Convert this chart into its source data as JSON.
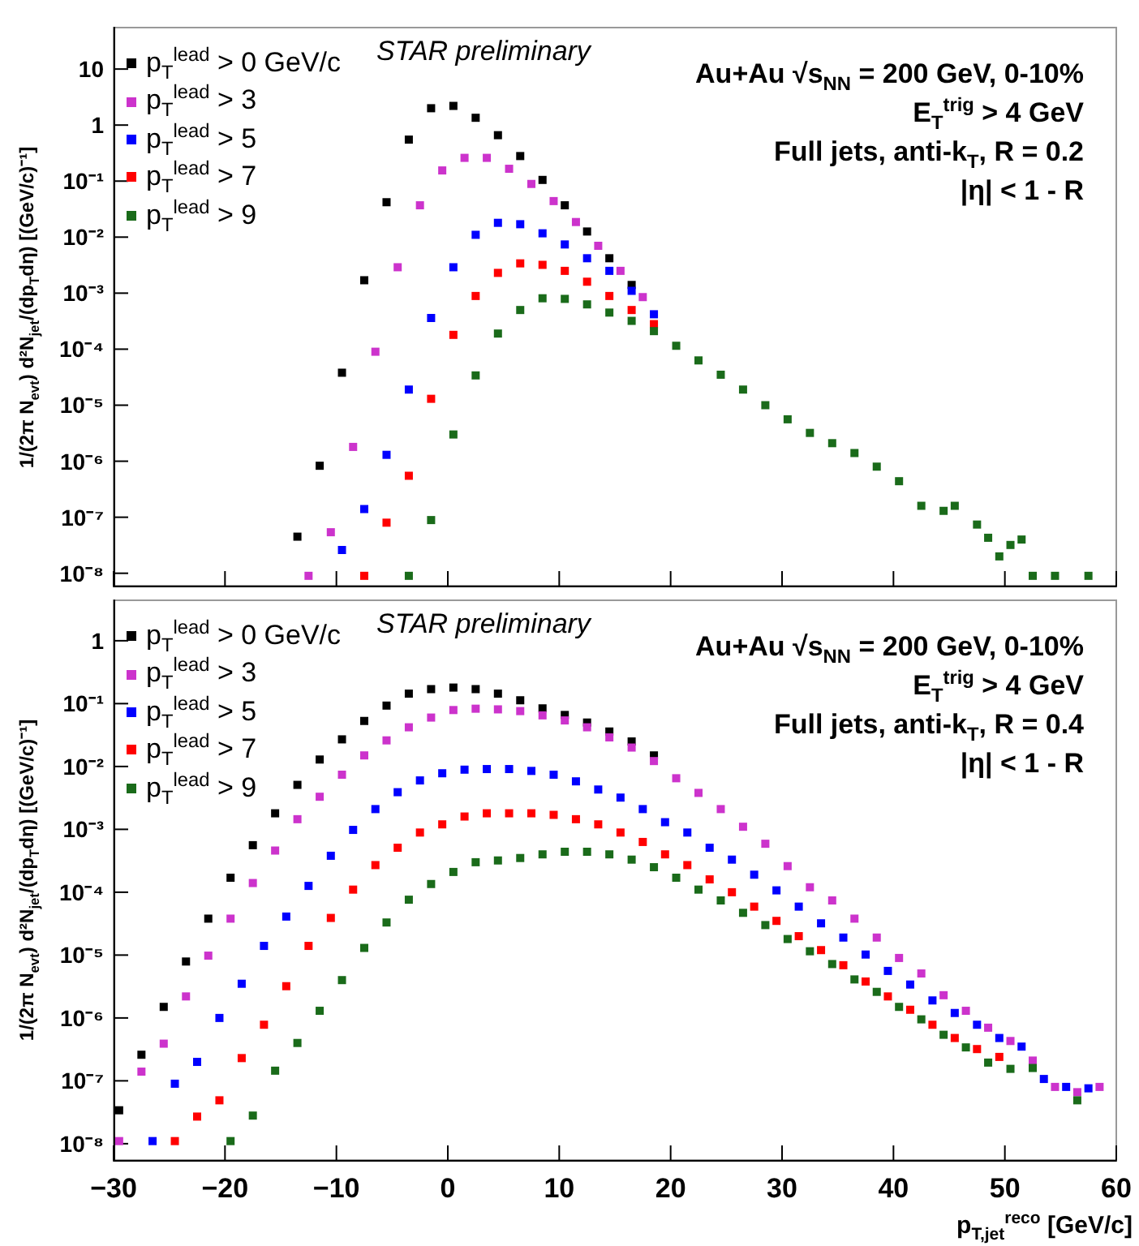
{
  "chart_data": [
    {
      "type": "scatter",
      "log": "y",
      "marker": "square",
      "legend": "top left",
      "tick_labels": "y",
      "ylabel": "1/(2π N$_{evt}$) d²N$_{jet}$/(dp$_{T}$dη)  [(GeV/c)⁻¹]",
      "annotations": [
        "STAR preliminary",
        "Au+Au  √s$_{NN}$ = 200 GeV, 0-10%",
        "E$_{T}$$^{trig}$ > 4 GeV",
        "Full jets, anti-k$_{T}$,  R = 0.2",
        "|η| < 1 - R"
      ],
      "xlim": [
        -30,
        60
      ],
      "xticks": [
        -30,
        -20,
        -10,
        0,
        10,
        20,
        30,
        40,
        50,
        60
      ],
      "ylim": [
        6e-09,
        55
      ],
      "yticks": [
        {
          "value": 1e-08,
          "label": "10⁻⁸"
        },
        {
          "value": 1e-07,
          "label": "10⁻⁷"
        },
        {
          "value": 1e-06,
          "label": "10⁻⁶"
        },
        {
          "value": 1e-05,
          "label": "10⁻⁵"
        },
        {
          "value": 0.0001,
          "label": "10⁻⁴"
        },
        {
          "value": 0.001,
          "label": "10⁻³"
        },
        {
          "value": 0.01,
          "label": "10⁻²"
        },
        {
          "value": 0.1,
          "label": "10⁻¹"
        },
        {
          "value": 1,
          "label": "1"
        },
        {
          "value": 10,
          "label": "10"
        }
      ],
      "series": [
        {
          "name": "p$_{T}$$^{lead}$ > 0 GeV/c",
          "color": "#000000",
          "x": [
            -13.5,
            -11.5,
            -9.5,
            -7.5,
            -5.5,
            -3.5,
            -1.5,
            0.5,
            2.5,
            4.5,
            6.5,
            8.5,
            10.5,
            12.5,
            14.5,
            16.5
          ],
          "values": [
            4.5e-08,
            8.3e-07,
            3.8e-05,
            0.0017,
            0.042,
            0.55,
            2.0,
            2.2,
            1.35,
            0.66,
            0.28,
            0.105,
            0.037,
            0.0126,
            0.0042,
            0.0014
          ]
        },
        {
          "name": "p$_{T}$$^{lead}$ > 3",
          "color": "#cc33cc",
          "x": [
            -12.5,
            -10.5,
            -8.5,
            -6.5,
            -4.5,
            -2.5,
            -0.5,
            1.5,
            3.5,
            5.5,
            7.5,
            9.5,
            11.5,
            13.5,
            15.5,
            17.5
          ],
          "values": [
            9e-09,
            5.4e-08,
            1.8e-06,
            9e-05,
            0.0029,
            0.037,
            0.155,
            0.26,
            0.26,
            0.166,
            0.089,
            0.044,
            0.0186,
            0.007,
            0.0025,
            0.00085
          ]
        },
        {
          "name": "p$_{T}$$^{lead}$ > 5",
          "color": "#0000ff",
          "x": [
            -9.5,
            -7.5,
            -5.5,
            -3.5,
            -1.5,
            0.5,
            2.5,
            4.5,
            6.5,
            8.5,
            10.5,
            12.5,
            14.5,
            16.5,
            18.5
          ],
          "values": [
            2.6e-08,
            1.4e-07,
            1.3e-06,
            1.9e-05,
            0.00036,
            0.0029,
            0.011,
            0.018,
            0.017,
            0.0117,
            0.0074,
            0.0042,
            0.0025,
            0.0011,
            0.00042
          ]
        },
        {
          "name": "p$_{T}$$^{lead}$ > 7",
          "color": "#ff0000",
          "x": [
            -7.5,
            -5.5,
            -3.5,
            -1.5,
            0.5,
            2.5,
            4.5,
            6.5,
            8.5,
            10.5,
            12.5,
            14.5,
            16.5,
            18.5
          ],
          "values": [
            9e-09,
            8e-08,
            5.5e-07,
            1.3e-05,
            0.00018,
            0.00089,
            0.0023,
            0.0034,
            0.0032,
            0.0025,
            0.0016,
            0.00089,
            0.0005,
            0.00028
          ]
        },
        {
          "name": "p$_{T}$$^{lead}$ > 9",
          "color": "#1a6b1a",
          "x": [
            -3.5,
            -1.5,
            0.5,
            2.5,
            4.5,
            6.5,
            8.5,
            10.5,
            12.5,
            14.5,
            16.5,
            18.5,
            20.5,
            22.5,
            24.5,
            26.5,
            28.5,
            30.5,
            32.5,
            34.5,
            36.5,
            38.5,
            40.5,
            42.5,
            44.5,
            45.5,
            47.5,
            48.5,
            49.5,
            50.5,
            51.5,
            52.5,
            54.5,
            57.5
          ],
          "values": [
            9e-09,
            8.9e-08,
            3e-06,
            3.4e-05,
            0.00019,
            0.0005,
            0.00081,
            0.00079,
            0.00063,
            0.00045,
            0.00032,
            0.00021,
            0.000115,
            6.3e-05,
            3.5e-05,
            1.9e-05,
            1e-05,
            5.6e-06,
            3.2e-06,
            2.1e-06,
            1.4e-06,
            8e-07,
            4.4e-07,
            1.6e-07,
            1.3e-07,
            1.6e-07,
            7.4e-08,
            4.3e-08,
            2e-08,
            3.2e-08,
            4e-08,
            9e-09,
            9e-09,
            9e-09
          ]
        }
      ]
    },
    {
      "type": "scatter",
      "log": "y",
      "marker": "square",
      "legend": "top left",
      "xlabel": "p$_{T,jet}$$^{reco}$ [GeV/c]",
      "ylabel": "1/(2π N$_{evt}$) d²N$_{jet}$/(dp$_{T}$dη)  [(GeV/c)⁻¹]",
      "annotations": [
        "STAR preliminary",
        "Au+Au  √s$_{NN}$ = 200 GeV, 0-10%",
        "E$_{T}$$^{trig}$ > 4 GeV",
        "Full jets, anti-k$_{T}$,  R = 0.4",
        "|η| < 1 - R"
      ],
      "xlim": [
        -30,
        60
      ],
      "xticks": [
        {
          "value": -30,
          "label": "−30"
        },
        {
          "value": -20,
          "label": "−20"
        },
        {
          "value": -10,
          "label": "−10"
        },
        0,
        10,
        20,
        30,
        40,
        50,
        60
      ],
      "ylim": [
        5.5e-09,
        4.4
      ],
      "yticks": [
        {
          "value": 1e-08,
          "label": "10⁻⁸"
        },
        {
          "value": 1e-07,
          "label": "10⁻⁷"
        },
        {
          "value": 1e-06,
          "label": "10⁻⁶"
        },
        {
          "value": 1e-05,
          "label": "10⁻⁵"
        },
        {
          "value": 0.0001,
          "label": "10⁻⁴"
        },
        {
          "value": 0.001,
          "label": "10⁻³"
        },
        {
          "value": 0.01,
          "label": "10⁻²"
        },
        {
          "value": 0.1,
          "label": "10⁻¹"
        },
        {
          "value": 1,
          "label": "1"
        }
      ],
      "series": [
        {
          "name": "p$_{T}$$^{lead}$ > 0 GeV/c",
          "color": "#000000",
          "x": [
            -29.5,
            -27.5,
            -25.5,
            -23.5,
            -21.5,
            -19.5,
            -17.5,
            -15.5,
            -13.5,
            -11.5,
            -9.5,
            -7.5,
            -5.5,
            -3.5,
            -1.5,
            0.5,
            2.5,
            4.5,
            6.5,
            8.5,
            10.5,
            12.5,
            14.5,
            16.5,
            18.5
          ],
          "values": [
            3.4e-08,
            2.6e-07,
            1.5e-06,
            7.9e-06,
            3.8e-05,
            0.00017,
            0.00056,
            0.0018,
            0.0051,
            0.0129,
            0.027,
            0.053,
            0.093,
            0.144,
            0.17,
            0.18,
            0.17,
            0.144,
            0.113,
            0.084,
            0.066,
            0.05,
            0.036,
            0.025,
            0.015
          ]
        },
        {
          "name": "p$_{T}$$^{lead}$ > 3",
          "color": "#cc33cc",
          "x": [
            -29.5,
            -27.5,
            -25.5,
            -23.5,
            -21.5,
            -19.5,
            -17.5,
            -15.5,
            -13.5,
            -11.5,
            -9.5,
            -7.5,
            -5.5,
            -3.5,
            -1.5,
            0.5,
            2.5,
            4.5,
            6.5,
            8.5,
            10.5,
            12.5,
            14.5,
            16.5,
            18.5,
            20.5,
            22.5,
            24.5,
            26.5,
            28.5,
            30.5,
            32.5,
            34.5,
            36.5,
            38.5,
            40.5,
            42.5,
            44.5,
            46.5,
            48.5,
            50.5,
            52.5,
            54.5,
            56.5,
            58.5
          ],
          "values": [
            1.1e-08,
            1.4e-07,
            3.9e-07,
            2.2e-06,
            9.8e-06,
            3.8e-05,
            0.00014,
            0.00046,
            0.00145,
            0.0033,
            0.0074,
            0.015,
            0.026,
            0.042,
            0.06,
            0.079,
            0.083,
            0.081,
            0.076,
            0.065,
            0.054,
            0.042,
            0.029,
            0.02,
            0.0122,
            0.0065,
            0.0038,
            0.0021,
            0.0011,
            0.00059,
            0.00026,
            0.00012,
            7.4e-05,
            3.8e-05,
            1.9e-05,
            9e-06,
            5.1e-06,
            2.3e-06,
            1.3e-06,
            7e-07,
            4.3e-07,
            2.1e-07,
            8e-08,
            6.6e-08,
            8e-08
          ]
        },
        {
          "name": "p$_{T}$$^{lead}$ > 5",
          "color": "#0000ff",
          "x": [
            -26.5,
            -24.5,
            -22.5,
            -20.5,
            -18.5,
            -16.5,
            -14.5,
            -12.5,
            -10.5,
            -8.5,
            -6.5,
            -4.5,
            -2.5,
            -0.5,
            1.5,
            3.5,
            5.5,
            7.5,
            9.5,
            11.5,
            13.5,
            15.5,
            17.5,
            19.5,
            21.5,
            23.5,
            25.5,
            27.5,
            29.5,
            31.5,
            33.5,
            35.5,
            37.5,
            39.5,
            41.5,
            43.5,
            45.5,
            47.5,
            49.5,
            51.5,
            53.5,
            55.5,
            57.5
          ],
          "values": [
            1.1e-08,
            9e-08,
            2e-07,
            1e-06,
            3.5e-06,
            1.4e-05,
            4.1e-05,
            0.000126,
            0.00038,
            0.00098,
            0.0021,
            0.0039,
            0.006,
            0.0078,
            0.0089,
            0.0091,
            0.0091,
            0.0085,
            0.0074,
            0.0058,
            0.0043,
            0.0032,
            0.0021,
            0.0013,
            0.00089,
            0.00051,
            0.00033,
            0.00019,
            0.000107,
            5.9e-05,
            3.2e-05,
            1.9e-05,
            1.02e-05,
            5.6e-06,
            3.4e-06,
            1.9e-06,
            1.2e-06,
            7.8e-07,
            4.8e-07,
            3.5e-07,
            1.07e-07,
            8e-08,
            7.6e-08
          ]
        },
        {
          "name": "p$_{T}$$^{lead}$ > 7",
          "color": "#ff0000",
          "x": [
            -24.5,
            -22.5,
            -20.5,
            -18.5,
            -16.5,
            -14.5,
            -12.5,
            -10.5,
            -8.5,
            -6.5,
            -4.5,
            -2.5,
            -0.5,
            1.5,
            3.5,
            5.5,
            7.5,
            9.5,
            11.5,
            13.5,
            15.5,
            17.5,
            19.5,
            21.5,
            23.5,
            25.5,
            27.5,
            29.5,
            31.5,
            33.5,
            35.5,
            37.5,
            39.5,
            41.5,
            43.5,
            45.5,
            47.5,
            49.5
          ],
          "values": [
            1.1e-08,
            2.7e-08,
            4.9e-08,
            2.3e-07,
            7.8e-07,
            3.2e-06,
            1.4e-05,
            3.9e-05,
            0.00011,
            0.00027,
            0.00051,
            0.00089,
            0.0012,
            0.0016,
            0.0018,
            0.0018,
            0.0018,
            0.0017,
            0.00145,
            0.0012,
            0.00089,
            0.00063,
            0.0004,
            0.00027,
            0.00016,
            0.0001,
            5.9e-05,
            3.5e-05,
            2e-05,
            1.2e-05,
            6.9e-06,
            3.8e-06,
            2.2e-06,
            1.35e-06,
            7.8e-07,
            4.8e-07,
            3.2e-07,
            2.4e-07
          ]
        },
        {
          "name": "p$_{T}$$^{lead}$ > 9",
          "color": "#1a6b1a",
          "x": [
            -19.5,
            -17.5,
            -15.5,
            -13.5,
            -11.5,
            -9.5,
            -7.5,
            -5.5,
            -3.5,
            -1.5,
            0.5,
            2.5,
            4.5,
            6.5,
            8.5,
            10.5,
            12.5,
            14.5,
            16.5,
            18.5,
            20.5,
            22.5,
            24.5,
            26.5,
            28.5,
            30.5,
            32.5,
            34.5,
            36.5,
            38.5,
            40.5,
            42.5,
            44.5,
            46.5,
            48.5,
            50.5,
            52.5,
            56.5
          ],
          "values": [
            1.1e-08,
            2.8e-08,
            1.45e-07,
            4e-07,
            1.3e-06,
            4e-06,
            1.3e-05,
            3.3e-05,
            7.6e-05,
            0.000135,
            0.00021,
            0.0003,
            0.00032,
            0.00035,
            0.0004,
            0.00044,
            0.00044,
            0.0004,
            0.00033,
            0.00025,
            0.00017,
            0.00011,
            7.4e-05,
            4.7e-05,
            3e-05,
            1.8e-05,
            1.15e-05,
            7.2e-06,
            4.1e-06,
            2.6e-06,
            1.5e-06,
            9.5e-07,
            5.4e-07,
            3.4e-07,
            1.95e-07,
            1.55e-07,
            1.6e-07,
            4.9e-08
          ]
        }
      ]
    }
  ]
}
